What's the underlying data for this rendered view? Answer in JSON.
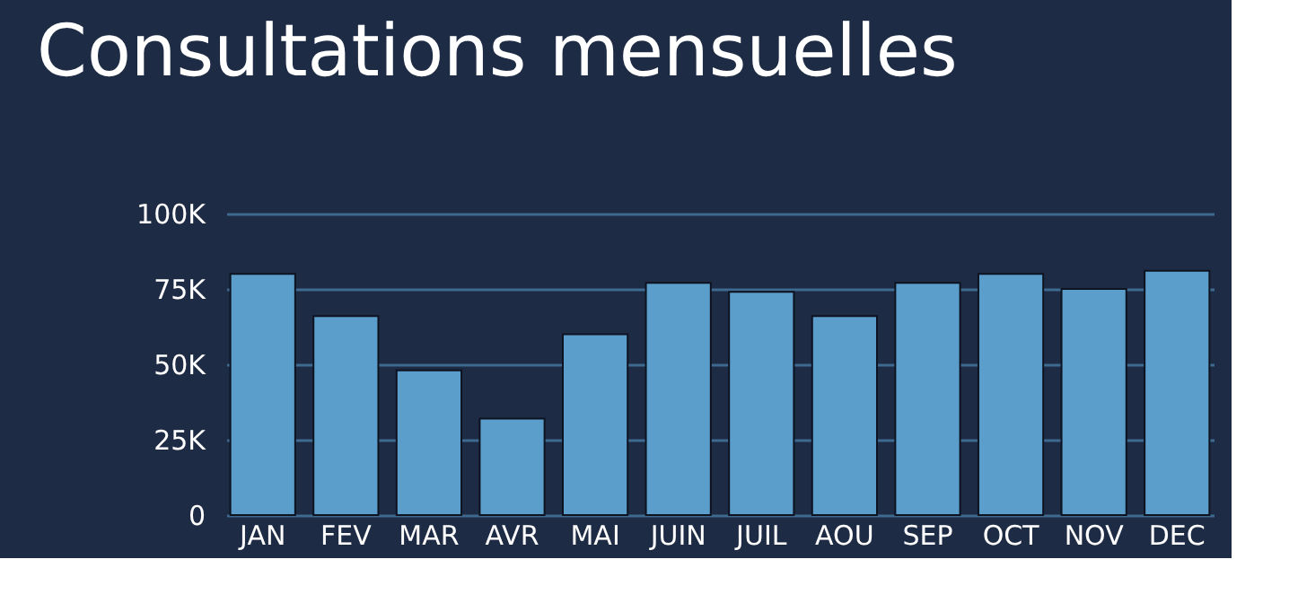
{
  "chart_data": {
    "type": "bar",
    "title": "Consultations mensuelles",
    "categories": [
      "JAN",
      "FEV",
      "MAR",
      "AVR",
      "MAI",
      "JUIN",
      "JUIL",
      "AOU",
      "SEP",
      "OCT",
      "NOV",
      "DEC"
    ],
    "values": [
      80000,
      66000,
      48000,
      32000,
      60000,
      77000,
      74000,
      66000,
      77000,
      80000,
      75000,
      81000
    ],
    "color": "#5b9dcb",
    "ylim": [
      0,
      100000
    ],
    "yticks": [
      0,
      {
        "value": 25000,
        "label": "25K"
      },
      {
        "value": 50000,
        "label": "50K"
      },
      {
        "value": 75000,
        "label": "75K"
      },
      {
        "value": 100000,
        "label": "100K"
      }
    ],
    "grid": "y"
  }
}
